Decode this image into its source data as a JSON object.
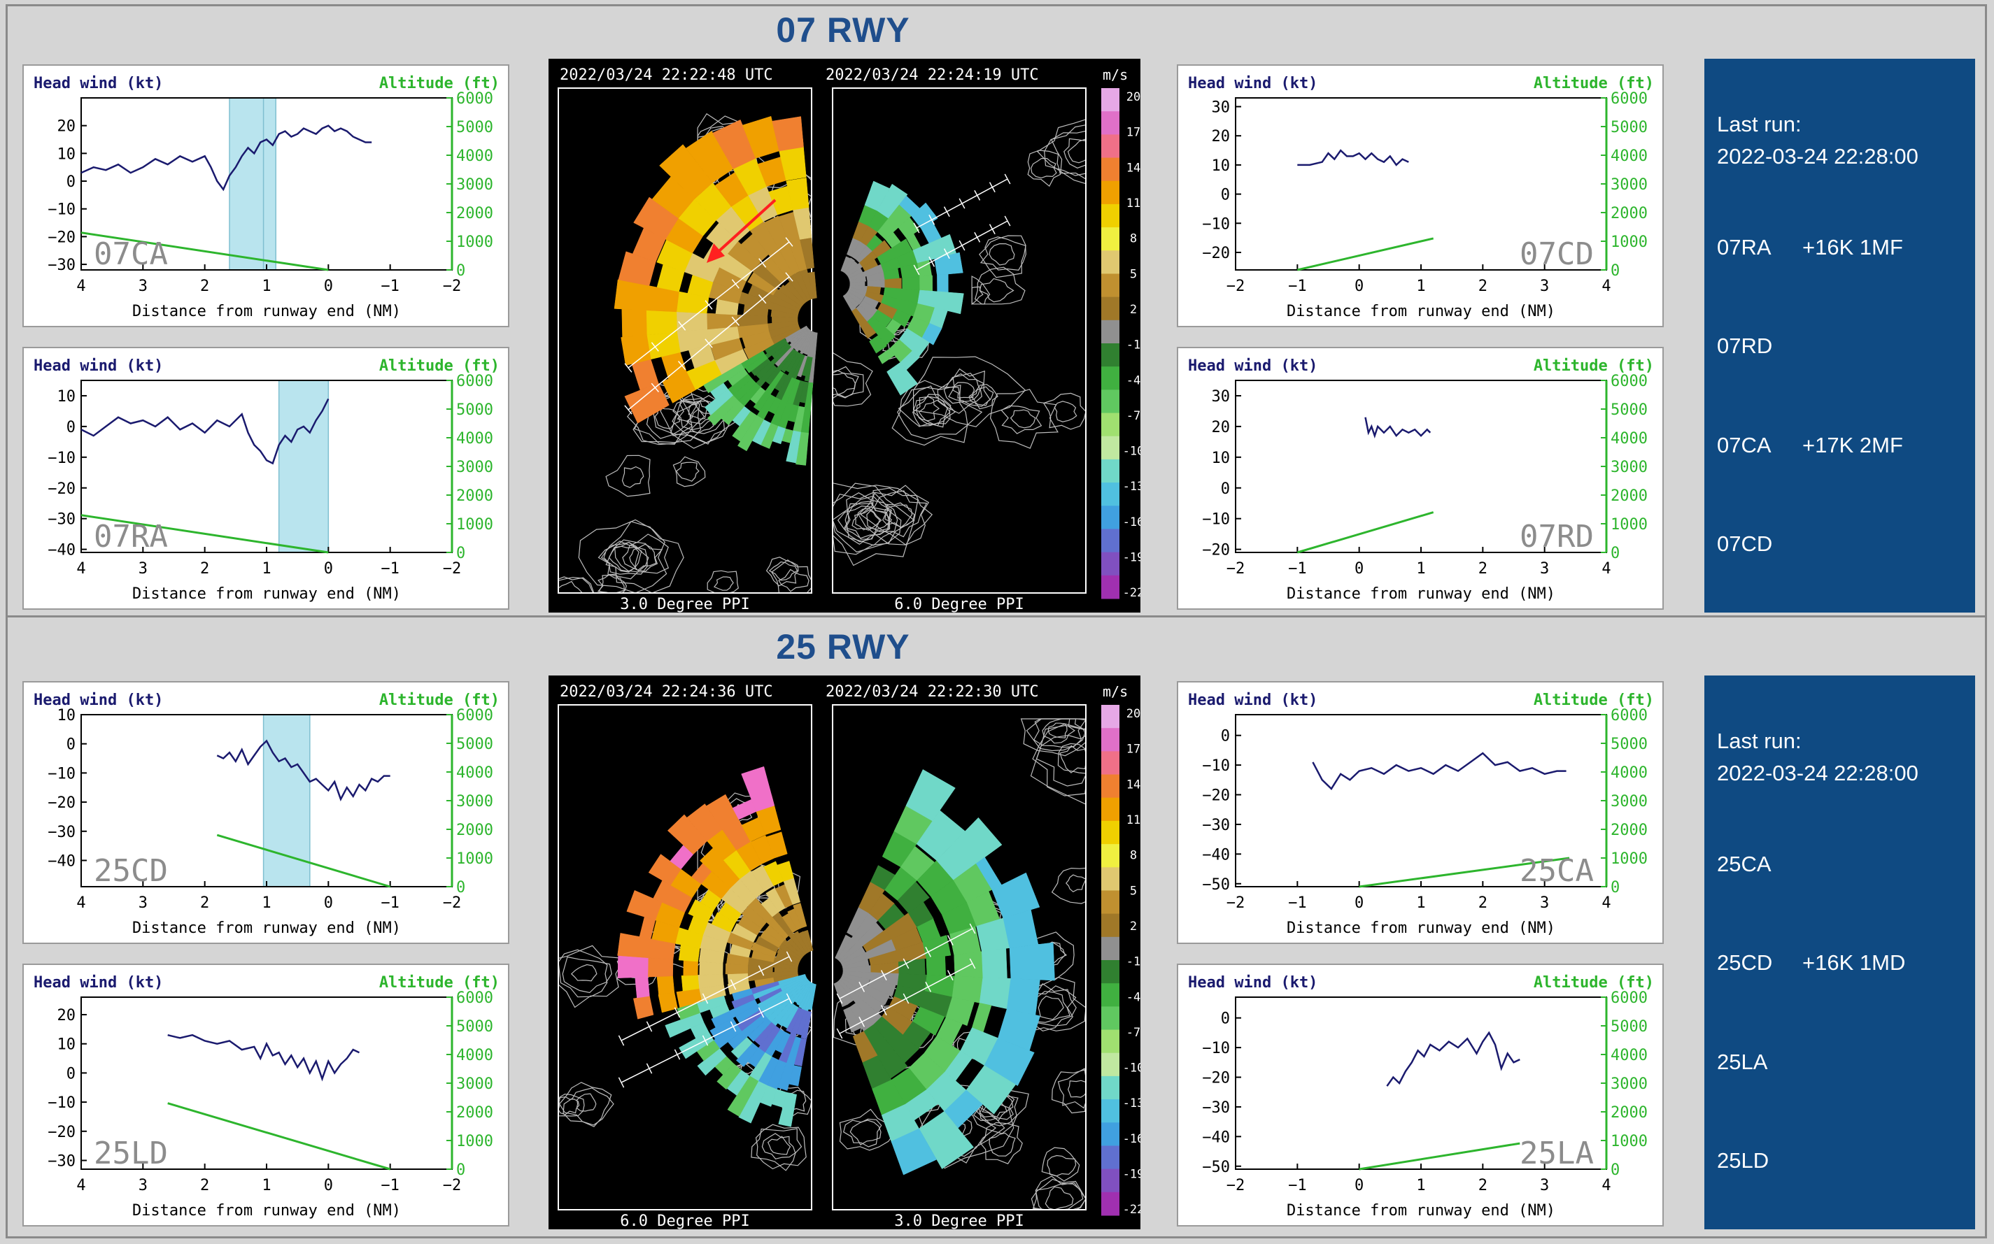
{
  "colors": {
    "headwind": "#1a1a6e",
    "altitude": "#2db52d",
    "alert_band": "#b9e4ee",
    "label_grey": "#8c8c8c",
    "status_bg": "#0f4a82"
  },
  "sections": [
    {
      "title": "07 RWY"
    },
    {
      "title": "25 RWY"
    }
  ],
  "chart_data": [
    {
      "id": "07CA",
      "type": "line",
      "label": "07CA",
      "ylabel_left": "Head wind (kt)",
      "ylabel_right": "Altitude (ft)",
      "xlabel": "Distance from runway end (NM)",
      "xlim": [
        4,
        -2
      ],
      "xticks": [
        4,
        3,
        2,
        1,
        0,
        -1,
        -2
      ],
      "ylim": [
        -32,
        30
      ],
      "yticks": [
        -30,
        -20,
        -10,
        0,
        10,
        20
      ],
      "y2lim": [
        0,
        6000
      ],
      "y2ticks": [
        0,
        1000,
        2000,
        3000,
        4000,
        5000,
        6000
      ],
      "bands": [
        [
          1.6,
          0.85
        ]
      ],
      "band_marks": [
        1.05
      ],
      "series": [
        {
          "axis": "left",
          "x": [
            4.0,
            3.8,
            3.6,
            3.4,
            3.2,
            3.0,
            2.8,
            2.6,
            2.4,
            2.2,
            2.0,
            1.9,
            1.8,
            1.7,
            1.6,
            1.5,
            1.4,
            1.3,
            1.2,
            1.1,
            1.0,
            0.9,
            0.8,
            0.7,
            0.6,
            0.5,
            0.4,
            0.3,
            0.2,
            0.1,
            0.0,
            -0.1,
            -0.2,
            -0.3,
            -0.4,
            -0.5,
            -0.6,
            -0.7
          ],
          "y": [
            3,
            5,
            4,
            6,
            3,
            5,
            8,
            6,
            9,
            7,
            9,
            5,
            0,
            -3,
            2,
            5,
            9,
            12,
            10,
            14,
            15,
            13,
            17,
            18,
            16,
            17,
            19,
            18,
            17,
            19,
            20,
            18,
            19,
            18,
            16,
            15,
            14,
            14
          ]
        },
        {
          "axis": "right",
          "x": [
            4.0,
            0.0
          ],
          "y": [
            1300,
            0
          ]
        }
      ]
    },
    {
      "id": "07RA",
      "type": "line",
      "label": "07RA",
      "ylabel_left": "Head wind (kt)",
      "ylabel_right": "Altitude (ft)",
      "xlabel": "Distance from runway end (NM)",
      "xlim": [
        4,
        -2
      ],
      "xticks": [
        4,
        3,
        2,
        1,
        0,
        -1,
        -2
      ],
      "ylim": [
        -41,
        15
      ],
      "yticks": [
        -40,
        -30,
        -20,
        -10,
        0,
        10
      ],
      "y2lim": [
        0,
        6000
      ],
      "y2ticks": [
        0,
        1000,
        2000,
        3000,
        4000,
        5000,
        6000
      ],
      "bands": [
        [
          0.8,
          0.0
        ]
      ],
      "band_marks": [],
      "series": [
        {
          "axis": "left",
          "x": [
            4.0,
            3.8,
            3.6,
            3.4,
            3.2,
            3.0,
            2.8,
            2.6,
            2.4,
            2.2,
            2.0,
            1.8,
            1.6,
            1.4,
            1.3,
            1.2,
            1.1,
            1.0,
            0.9,
            0.8,
            0.7,
            0.6,
            0.5,
            0.4,
            0.3,
            0.2,
            0.1,
            0.0
          ],
          "y": [
            -1,
            -3,
            0,
            3,
            1,
            2,
            0,
            3,
            -1,
            1,
            -2,
            2,
            0,
            4,
            -2,
            -6,
            -8,
            -11,
            -12,
            -6,
            -3,
            -5,
            -1,
            0,
            -2,
            2,
            5,
            9
          ]
        },
        {
          "axis": "right",
          "x": [
            4.0,
            0.0
          ],
          "y": [
            1300,
            0
          ]
        }
      ]
    },
    {
      "id": "07CD",
      "type": "line",
      "label": "07CD",
      "ylabel_left": "Head wind (kt)",
      "ylabel_right": "Altitude (ft)",
      "xlabel": "Distance from runway end (NM)",
      "xlim": [
        -2,
        4
      ],
      "xticks": [
        -2,
        -1,
        0,
        1,
        2,
        3,
        4
      ],
      "ylim": [
        -26,
        33
      ],
      "yticks": [
        -20,
        -10,
        0,
        10,
        20,
        30
      ],
      "y2lim": [
        0,
        6000
      ],
      "y2ticks": [
        0,
        1000,
        2000,
        3000,
        4000,
        5000,
        6000
      ],
      "bands": [],
      "band_marks": [],
      "series": [
        {
          "axis": "left",
          "x": [
            -1.0,
            -0.8,
            -0.6,
            -0.5,
            -0.4,
            -0.3,
            -0.2,
            -0.1,
            0.0,
            0.1,
            0.2,
            0.3,
            0.4,
            0.5,
            0.6,
            0.7,
            0.8
          ],
          "y": [
            10,
            10,
            11,
            14,
            12,
            15,
            13,
            13,
            14,
            12,
            14,
            12,
            11,
            13,
            10,
            12,
            11
          ]
        },
        {
          "axis": "right",
          "x": [
            -1.0,
            1.2
          ],
          "y": [
            0,
            1100
          ]
        }
      ]
    },
    {
      "id": "07RD",
      "type": "line",
      "label": "07RD",
      "ylabel_left": "Head wind (kt)",
      "ylabel_right": "Altitude (ft)",
      "xlabel": "Distance from runway end (NM)",
      "xlim": [
        -2,
        4
      ],
      "xticks": [
        -2,
        -1,
        0,
        1,
        2,
        3,
        4
      ],
      "ylim": [
        -21,
        35
      ],
      "yticks": [
        -20,
        -10,
        0,
        10,
        20,
        30
      ],
      "y2lim": [
        0,
        6000
      ],
      "y2ticks": [
        0,
        1000,
        2000,
        3000,
        4000,
        5000,
        6000
      ],
      "bands": [],
      "band_marks": [],
      "series": [
        {
          "axis": "left",
          "x": [
            0.1,
            0.15,
            0.2,
            0.25,
            0.3,
            0.4,
            0.5,
            0.6,
            0.7,
            0.8,
            0.9,
            1.0,
            1.1,
            1.15
          ],
          "y": [
            23,
            18,
            20,
            17,
            20,
            18,
            20,
            17,
            19,
            18,
            19,
            17,
            19,
            18
          ]
        },
        {
          "axis": "right",
          "x": [
            -1.0,
            1.2
          ],
          "y": [
            0,
            1400
          ]
        }
      ]
    },
    {
      "id": "25CD",
      "type": "line",
      "label": "25CD",
      "ylabel_left": "Head wind (kt)",
      "ylabel_right": "Altitude (ft)",
      "xlabel": "Distance from runway end (NM)",
      "xlim": [
        4,
        -2
      ],
      "xticks": [
        4,
        3,
        2,
        1,
        0,
        -1,
        -2
      ],
      "ylim": [
        -49,
        10
      ],
      "yticks": [
        -40,
        -30,
        -20,
        -10,
        0,
        10
      ],
      "y2lim": [
        0,
        6000
      ],
      "y2ticks": [
        0,
        1000,
        2000,
        3000,
        4000,
        5000,
        6000
      ],
      "bands": [
        [
          1.05,
          0.3
        ]
      ],
      "band_marks": [],
      "series": [
        {
          "axis": "left",
          "x": [
            1.8,
            1.7,
            1.6,
            1.5,
            1.4,
            1.3,
            1.2,
            1.1,
            1.0,
            0.9,
            0.8,
            0.7,
            0.6,
            0.5,
            0.4,
            0.3,
            0.2,
            0.1,
            0.0,
            -0.1,
            -0.2,
            -0.3,
            -0.4,
            -0.5,
            -0.6,
            -0.7,
            -0.8,
            -0.9,
            -1.0
          ],
          "y": [
            -4,
            -5,
            -3,
            -6,
            -2,
            -7,
            -4,
            -1,
            1,
            -3,
            -6,
            -5,
            -8,
            -7,
            -10,
            -13,
            -12,
            -14,
            -16,
            -13,
            -19,
            -15,
            -18,
            -14,
            -16,
            -12,
            -13,
            -11,
            -11
          ]
        },
        {
          "axis": "right",
          "x": [
            1.8,
            -1.0
          ],
          "y": [
            1800,
            0
          ]
        }
      ]
    },
    {
      "id": "25LD",
      "type": "line",
      "label": "25LD",
      "ylabel_left": "Head wind (kt)",
      "ylabel_right": "Altitude (ft)",
      "xlabel": "Distance from runway end (NM)",
      "xlim": [
        4,
        -2
      ],
      "xticks": [
        4,
        3,
        2,
        1,
        0,
        -1,
        -2
      ],
      "ylim": [
        -33,
        26
      ],
      "yticks": [
        -30,
        -20,
        -10,
        0,
        10,
        20
      ],
      "y2lim": [
        0,
        6000
      ],
      "y2ticks": [
        0,
        1000,
        2000,
        3000,
        4000,
        5000,
        6000
      ],
      "bands": [],
      "band_marks": [],
      "series": [
        {
          "axis": "left",
          "x": [
            2.6,
            2.4,
            2.2,
            2.0,
            1.8,
            1.6,
            1.4,
            1.2,
            1.1,
            1.0,
            0.9,
            0.8,
            0.7,
            0.6,
            0.5,
            0.4,
            0.3,
            0.2,
            0.1,
            0.0,
            -0.1,
            -0.2,
            -0.3,
            -0.4,
            -0.5
          ],
          "y": [
            13,
            12,
            13,
            11,
            10,
            11,
            8,
            9,
            5,
            10,
            6,
            7,
            3,
            6,
            2,
            5,
            0,
            4,
            -2,
            4,
            0,
            3,
            5,
            8,
            7
          ]
        },
        {
          "axis": "right",
          "x": [
            2.6,
            -1.0
          ],
          "y": [
            2300,
            0
          ]
        }
      ]
    },
    {
      "id": "25CA",
      "type": "line",
      "label": "25CA",
      "ylabel_left": "Head wind (kt)",
      "ylabel_right": "Altitude (ft)",
      "xlabel": "Distance from runway end (NM)",
      "xlim": [
        -2,
        4
      ],
      "xticks": [
        -2,
        -1,
        0,
        1,
        2,
        3,
        4
      ],
      "ylim": [
        -51,
        7
      ],
      "yticks": [
        -50,
        -40,
        -30,
        -20,
        -10,
        0
      ],
      "y2lim": [
        0,
        6000
      ],
      "y2ticks": [
        0,
        1000,
        2000,
        3000,
        4000,
        5000,
        6000
      ],
      "bands": [],
      "band_marks": [],
      "series": [
        {
          "axis": "left",
          "x": [
            -0.75,
            -0.6,
            -0.45,
            -0.3,
            -0.15,
            0.0,
            0.2,
            0.4,
            0.6,
            0.8,
            1.0,
            1.2,
            1.4,
            1.6,
            1.8,
            2.0,
            2.2,
            2.4,
            2.6,
            2.8,
            3.0,
            3.2,
            3.35
          ],
          "y": [
            -9,
            -15,
            -18,
            -13,
            -15,
            -12,
            -11,
            -13,
            -10,
            -12,
            -11,
            -13,
            -10,
            -12,
            -9,
            -6,
            -10,
            -9,
            -12,
            -11,
            -13,
            -12,
            -12
          ]
        },
        {
          "axis": "right",
          "x": [
            0.0,
            3.4
          ],
          "y": [
            0,
            1000
          ]
        }
      ]
    },
    {
      "id": "25LA",
      "type": "line",
      "label": "25LA",
      "ylabel_left": "Head wind (kt)",
      "ylabel_right": "Altitude (ft)",
      "xlabel": "Distance from runway end (NM)",
      "xlim": [
        -2,
        4
      ],
      "xticks": [
        -2,
        -1,
        0,
        1,
        2,
        3,
        4
      ],
      "ylim": [
        -51,
        7
      ],
      "yticks": [
        -50,
        -40,
        -30,
        -20,
        -10,
        0
      ],
      "y2lim": [
        0,
        6000
      ],
      "y2ticks": [
        0,
        1000,
        2000,
        3000,
        4000,
        5000,
        6000
      ],
      "bands": [],
      "band_marks": [],
      "series": [
        {
          "axis": "left",
          "x": [
            0.45,
            0.55,
            0.65,
            0.75,
            0.85,
            0.95,
            1.05,
            1.15,
            1.3,
            1.45,
            1.6,
            1.75,
            1.9,
            2.0,
            2.1,
            2.2,
            2.3,
            2.4,
            2.5,
            2.6
          ],
          "y": [
            -23,
            -20,
            -22,
            -18,
            -15,
            -11,
            -13,
            -9,
            -11,
            -8,
            -10,
            -7,
            -12,
            -8,
            -5,
            -9,
            -17,
            -12,
            -15,
            -14
          ]
        },
        {
          "axis": "right",
          "x": [
            0.0,
            2.6
          ],
          "y": [
            0,
            900
          ]
        }
      ]
    }
  ],
  "radar": [
    {
      "left_timestamp": "2022/03/24   22:22:48  UTC",
      "right_timestamp": "2022/03/24   22:24:19  UTC",
      "left_caption": "3.0 Degree PPI",
      "right_caption": "6.0 Degree PPI",
      "unit": "m/s",
      "arrow": true
    },
    {
      "left_timestamp": "2022/03/24   22:24:36  UTC",
      "right_timestamp": "2022/03/24   22:22:30  UTC",
      "left_caption": "6.0 Degree PPI",
      "right_caption": "3.0 Degree PPI",
      "unit": "m/s",
      "arrow": false
    }
  ],
  "colorbar": {
    "ticks": [
      "20",
      "17",
      "14",
      "11",
      "8",
      "5",
      "2",
      "-1",
      "-4",
      "-7",
      "-10",
      "-13",
      "-16",
      "-19",
      "-22"
    ],
    "colors": [
      "#e6a8e6",
      "#e070c8",
      "#f07088",
      "#f08030",
      "#f0a000",
      "#f0d000",
      "#f0f040",
      "#e0c870",
      "#c09030",
      "#a07828",
      "#909090",
      "#308030",
      "#40b040",
      "#60c860",
      "#a0e070",
      "#c0e8a0",
      "#70d8c8",
      "#50c0e0",
      "#40a0e0",
      "#6070d0",
      "#8050c0",
      "#a030b0"
    ]
  },
  "status": [
    {
      "last_run_label": "Last run:",
      "last_run_time": "2022-03-24 22:28:00",
      "rows": [
        {
          "runway": "07RA",
          "alert": "+16K 1MF"
        },
        {
          "runway": "07RD",
          "alert": ""
        },
        {
          "runway": "07CA",
          "alert": "+17K 2MF"
        },
        {
          "runway": "07CD",
          "alert": ""
        }
      ]
    },
    {
      "last_run_label": "Last run:",
      "last_run_time": "2022-03-24 22:28:00",
      "rows": [
        {
          "runway": "25CA",
          "alert": ""
        },
        {
          "runway": "25CD",
          "alert": "+16K 1MD"
        },
        {
          "runway": "25LA",
          "alert": ""
        },
        {
          "runway": "25LD",
          "alert": ""
        }
      ]
    }
  ]
}
